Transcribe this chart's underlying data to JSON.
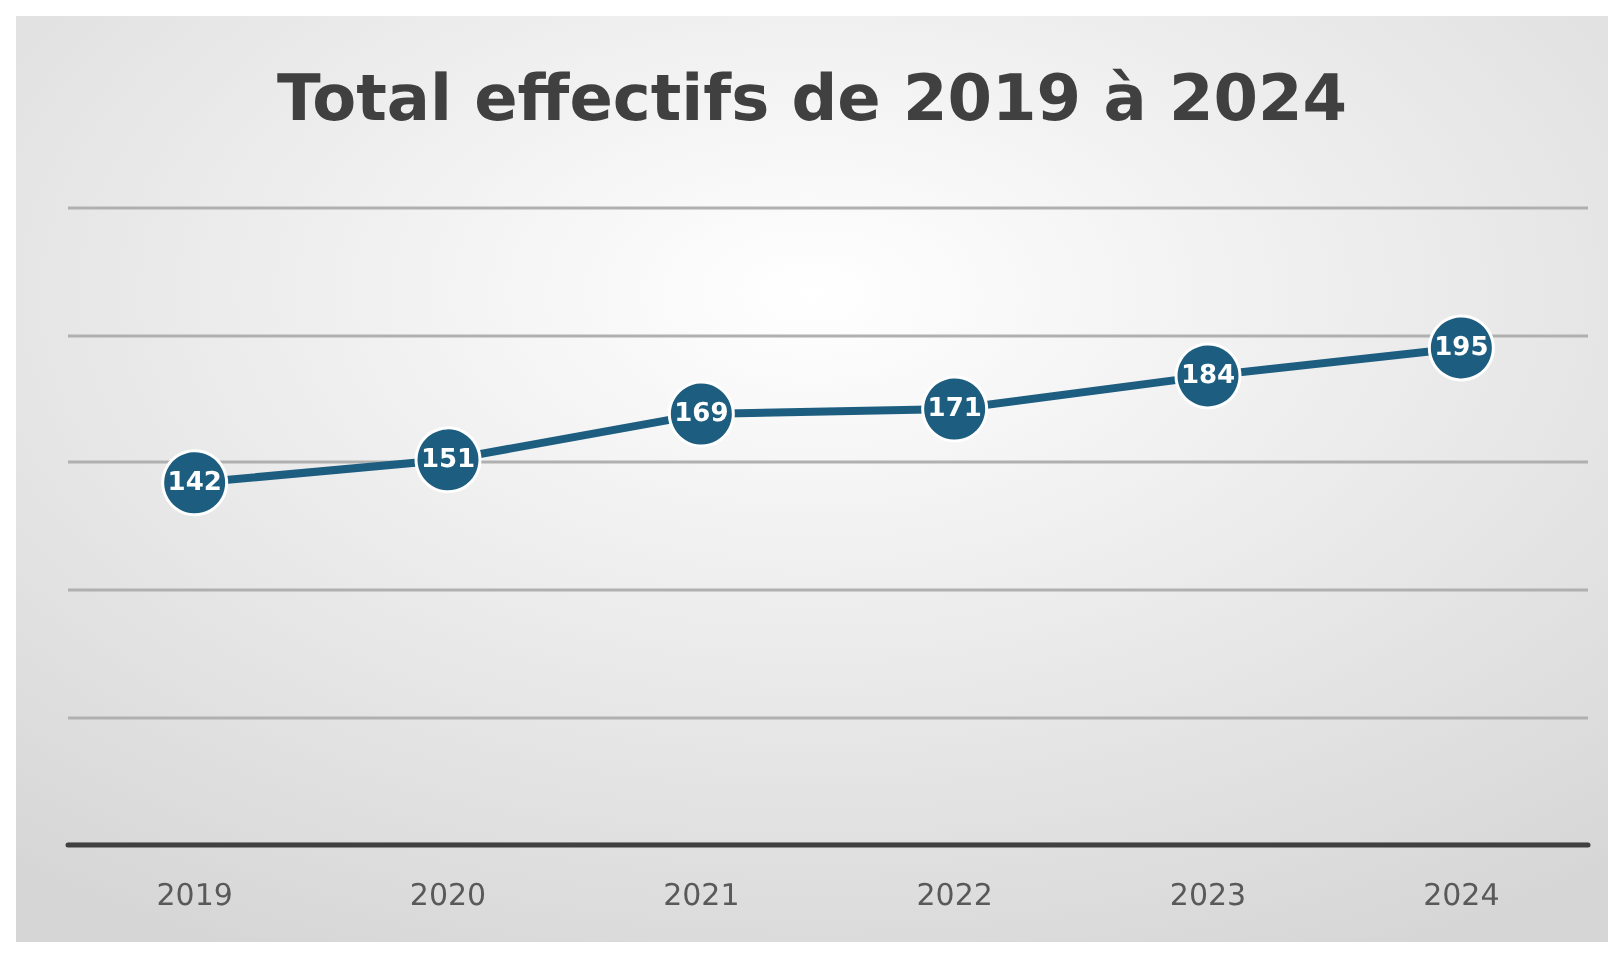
{
  "chart_data": {
    "type": "line",
    "title": "Total effectifs de 2019 à 2024",
    "categories": [
      "2019",
      "2020",
      "2021",
      "2022",
      "2023",
      "2024"
    ],
    "series": [
      {
        "color": "#1d5e80",
        "values": [
          142,
          151,
          169,
          171,
          184,
          195
        ]
      }
    ],
    "ylim": [
      0,
      250
    ],
    "yticks": [
      {
        "value": 0,
        "label": null
      },
      {
        "value": 50,
        "label": null
      },
      {
        "value": 100,
        "label": null
      },
      {
        "value": 150,
        "label": null
      },
      {
        "value": 200,
        "label": null
      },
      {
        "value": 250,
        "label": null
      }
    ],
    "tick_labels": "x",
    "grid": "y",
    "marker": "circle",
    "line_style": "solid",
    "data_labels": true
  }
}
